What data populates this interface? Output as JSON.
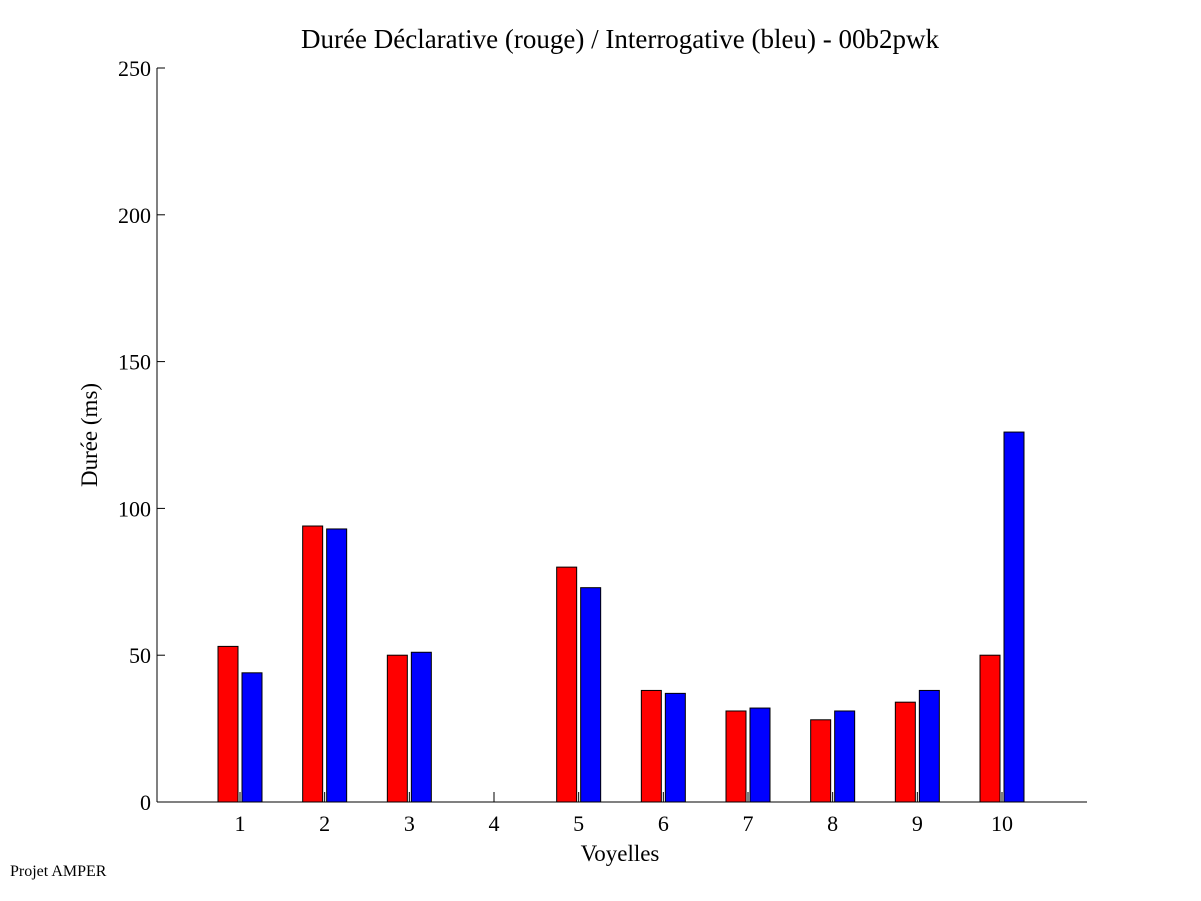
{
  "footer": "Projet AMPER",
  "chart_data": {
    "type": "bar",
    "title": "Durée Déclarative (rouge) / Interrogative (bleu) - 00b2pwk",
    "xlabel": "Voyelles",
    "ylabel": "Durée (ms)",
    "ylim": [
      0,
      250
    ],
    "yticks": [
      0,
      50,
      100,
      150,
      200,
      250
    ],
    "categories": [
      "1",
      "2",
      "3",
      "4",
      "5",
      "6",
      "7",
      "8",
      "9",
      "10"
    ],
    "grid": false,
    "legend": "none",
    "series": [
      {
        "color": "#ff0000",
        "values": [
          53,
          94,
          50,
          0,
          80,
          38,
          31,
          28,
          34,
          50
        ]
      },
      {
        "color": "#0000ff",
        "values": [
          44,
          93,
          51,
          0,
          73,
          37,
          32,
          31,
          38,
          126
        ]
      }
    ]
  }
}
